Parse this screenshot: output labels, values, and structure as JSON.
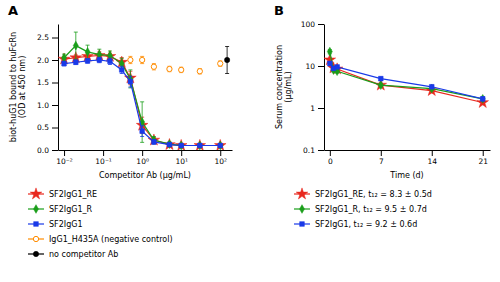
{
  "chart_data": [
    {
      "type": "scatter",
      "title": "A",
      "xlabel": "Competitor Ab (μg/mL)",
      "ylabel": "biot-huG1 bound to huFcRn\n(OD at 450 nm)",
      "log": "x",
      "xlim": [
        0.007,
        200
      ],
      "ylim": [
        0.0,
        2.8
      ],
      "xticks": [
        {
          "value": 0.01,
          "label": "10⁻²"
        },
        {
          "value": 0.1,
          "label": "10⁻¹"
        },
        {
          "value": 1,
          "label": "10⁰"
        },
        {
          "value": 10,
          "label": "10¹"
        },
        {
          "value": 100,
          "label": "10²"
        }
      ],
      "yticks": [
        {
          "value": 0.0,
          "label": "0.0"
        },
        0.5,
        {
          "value": 1.0,
          "label": "1.0"
        },
        1.5,
        {
          "value": 2.0,
          "label": "2.0"
        },
        2.5
      ],
      "grid": false,
      "legend": "bottom",
      "series": [
        {
          "name": "SF2IgG1_RE",
          "color": "#e8281e",
          "marker": "star",
          "line_style": "solid",
          "x": [
            0.01,
            0.02,
            0.04,
            0.08,
            0.15,
            0.3,
            0.5,
            1.0,
            2.0,
            5.0,
            10.0,
            30.0,
            100.0
          ],
          "values": [
            2.02,
            2.05,
            2.08,
            2.1,
            2.08,
            1.95,
            1.6,
            0.55,
            0.22,
            0.12,
            0.1,
            0.1,
            0.1
          ],
          "errors": [
            0.05,
            0.06,
            0.07,
            0.08,
            0.07,
            0.1,
            0.15,
            0.18,
            0.06,
            0.04,
            0.03,
            0.03,
            0.03
          ]
        },
        {
          "name": "SF2IgG1_R",
          "color": "#1a9e1a",
          "marker": "diamond",
          "line_style": "solid",
          "x": [
            0.01,
            0.02,
            0.04,
            0.08,
            0.15,
            0.3,
            0.5,
            1.0,
            2.0,
            5.0,
            10.0,
            30.0,
            100.0
          ],
          "values": [
            2.05,
            2.32,
            2.18,
            2.12,
            2.1,
            1.92,
            1.58,
            0.62,
            0.22,
            0.13,
            0.1,
            0.1,
            0.1
          ],
          "errors": [
            0.08,
            0.3,
            0.15,
            0.12,
            0.1,
            0.12,
            0.2,
            0.45,
            0.08,
            0.05,
            0.03,
            0.03,
            0.03
          ]
        },
        {
          "name": "SF2IgG1",
          "color": "#1a3ae8",
          "marker": "square",
          "line_style": "solid",
          "x": [
            0.01,
            0.02,
            0.04,
            0.08,
            0.15,
            0.3,
            0.5,
            1.0,
            2.0,
            5.0,
            10.0,
            30.0,
            100.0
          ],
          "values": [
            1.92,
            1.95,
            1.98,
            2.0,
            1.97,
            1.78,
            1.52,
            0.42,
            0.18,
            0.12,
            0.1,
            0.1,
            0.1
          ],
          "errors": [
            0.05,
            0.05,
            0.05,
            0.06,
            0.07,
            0.08,
            0.12,
            0.12,
            0.05,
            0.03,
            0.03,
            0.03,
            0.03
          ]
        },
        {
          "name": "IgG1_H435A (negative control)",
          "color": "#ff8c00",
          "marker": "circle-open",
          "line_style": "none",
          "x": [
            0.5,
            1.0,
            2.0,
            5.0,
            10.0,
            30.0,
            100.0
          ],
          "values": [
            2.0,
            2.0,
            1.85,
            1.8,
            1.78,
            1.75,
            1.92
          ],
          "errors": [
            0.08,
            0.08,
            0.07,
            0.06,
            0.06,
            0.06,
            0.06
          ]
        },
        {
          "name": "no competitor Ab",
          "color": "#000000",
          "marker": "circle",
          "line_style": "none",
          "x": [
            150.0
          ],
          "values": [
            2.0
          ],
          "errors": [
            0.3
          ]
        }
      ]
    },
    {
      "type": "line",
      "title": "B",
      "xlabel": "Time (d)",
      "ylabel": "Serum concentration\n(μg/mL)",
      "log": "y",
      "xlim": [
        -0.8,
        22
      ],
      "ylim": [
        0.1,
        100
      ],
      "xticks": [
        0,
        7,
        14,
        21
      ],
      "yticks": [
        0.1,
        1,
        10,
        100
      ],
      "grid": false,
      "legend": "bottom",
      "series": [
        {
          "name": "SF2IgG1_RE, t₁₂ = 8.3 ± 0.5d",
          "color": "#e8281e",
          "marker": "star",
          "x": [
            0.0,
            0.5,
            1.0,
            7,
            14,
            21
          ],
          "values": [
            14.0,
            9.0,
            8.5,
            3.5,
            2.6,
            1.35
          ],
          "errors": [
            1.5,
            0.8,
            0.7,
            0.4,
            0.3,
            0.15
          ]
        },
        {
          "name": "SF2IgG1_R, t₁₂ = 9.5 ± 0.7d",
          "color": "#1a9e1a",
          "marker": "diamond",
          "x": [
            0.0,
            0.5,
            1.0,
            7,
            14,
            21
          ],
          "values": [
            22.0,
            8.0,
            7.5,
            3.5,
            2.9,
            1.65
          ],
          "errors": [
            2.5,
            0.8,
            0.7,
            0.35,
            0.3,
            0.18
          ]
        },
        {
          "name": "SF2IgG1, t₁₂ = 9.2 ± 0.6d",
          "color": "#1a3ae8",
          "marker": "square",
          "x": [
            0.0,
            0.5,
            1.0,
            7,
            14,
            21
          ],
          "values": [
            11.5,
            8.8,
            9.5,
            5.0,
            3.2,
            1.65
          ],
          "errors": [
            1.2,
            0.9,
            0.8,
            0.5,
            0.3,
            0.18
          ]
        }
      ]
    }
  ]
}
